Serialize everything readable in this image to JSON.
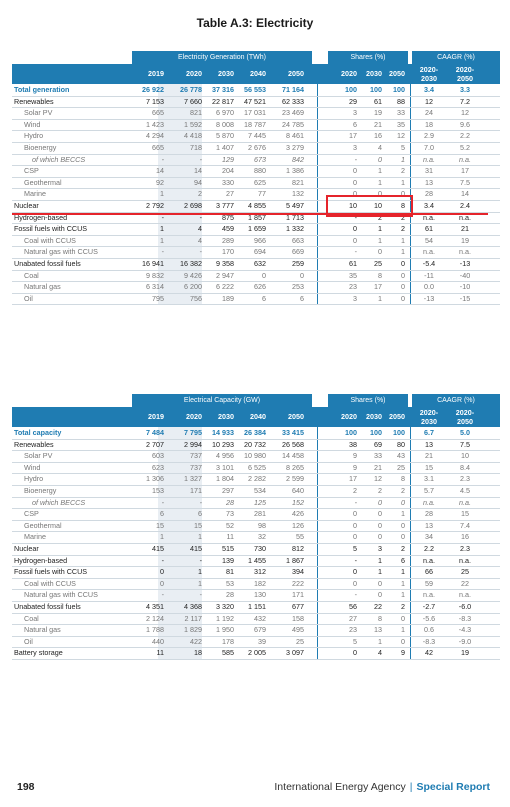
{
  "title": "Table A.3: Electricity",
  "tables": [
    {
      "band_main": "Electricity Generation (TWh)",
      "band_shares": "Shares (%)",
      "band_caagr": "CAAGR (%)",
      "years": [
        "2019",
        "2020",
        "2030",
        "2040",
        "2050"
      ],
      "share_years": [
        "2020",
        "2030",
        "2050"
      ],
      "caagr_years": [
        "2020-\n2030",
        "2020-\n2050"
      ],
      "rows": [
        {
          "label": "Total generation",
          "style": "total",
          "v": [
            "26 922",
            "26 778",
            "37 316",
            "56 553",
            "71 164"
          ],
          "s": [
            "100",
            "100",
            "100"
          ],
          "c": [
            "3.4",
            "3.3"
          ]
        },
        {
          "label": "Renewables",
          "style": "main",
          "v": [
            "7 153",
            "7 660",
            "22 817",
            "47 521",
            "62 333"
          ],
          "s": [
            "29",
            "61",
            "88"
          ],
          "c": [
            "12",
            "7.2"
          ]
        },
        {
          "label": "Solar PV",
          "style": "sub",
          "v": [
            "665",
            "821",
            "6 970",
            "17 031",
            "23 469"
          ],
          "s": [
            "3",
            "19",
            "33"
          ],
          "c": [
            "24",
            "12"
          ]
        },
        {
          "label": "Wind",
          "style": "sub",
          "v": [
            "1 423",
            "1 592",
            "8 008",
            "18 787",
            "24 785"
          ],
          "s": [
            "6",
            "21",
            "35"
          ],
          "c": [
            "18",
            "9.6"
          ]
        },
        {
          "label": "Hydro",
          "style": "sub",
          "v": [
            "4 294",
            "4 418",
            "5 870",
            "7 445",
            "8 461"
          ],
          "s": [
            "17",
            "16",
            "12"
          ],
          "c": [
            "2.9",
            "2.2"
          ]
        },
        {
          "label": "Bioenergy",
          "style": "sub",
          "v": [
            "665",
            "718",
            "1 407",
            "2 676",
            "3 279"
          ],
          "s": [
            "3",
            "4",
            "5"
          ],
          "c": [
            "7.0",
            "5.2"
          ]
        },
        {
          "label": "of which BECCS",
          "style": "subsub",
          "v": [
            "-",
            "-",
            "129",
            "673",
            "842"
          ],
          "s": [
            "-",
            "0",
            "1"
          ],
          "c": [
            "n.a.",
            "n.a."
          ]
        },
        {
          "label": "CSP",
          "style": "sub",
          "v": [
            "14",
            "14",
            "204",
            "880",
            "1 386"
          ],
          "s": [
            "0",
            "1",
            "2"
          ],
          "c": [
            "31",
            "17"
          ]
        },
        {
          "label": "Geothermal",
          "style": "sub",
          "v": [
            "92",
            "94",
            "330",
            "625",
            "821"
          ],
          "s": [
            "0",
            "1",
            "1"
          ],
          "c": [
            "13",
            "7.5"
          ]
        },
        {
          "label": "Marine",
          "style": "sub",
          "v": [
            "1",
            "2",
            "27",
            "77",
            "132"
          ],
          "s": [
            "0",
            "0",
            "0"
          ],
          "c": [
            "28",
            "14"
          ]
        },
        {
          "label": "Nuclear",
          "style": "main",
          "v": [
            "2 792",
            "2 698",
            "3 777",
            "4 855",
            "5 497"
          ],
          "s": [
            "10",
            "10",
            "8"
          ],
          "c": [
            "3.4",
            "2.4"
          ]
        },
        {
          "label": "Hydrogen-based",
          "style": "main",
          "v": [
            "-",
            "-",
            "875",
            "1 857",
            "1 713"
          ],
          "s": [
            "-",
            "2",
            "2"
          ],
          "c": [
            "n.a.",
            "n.a."
          ]
        },
        {
          "label": "Fossil fuels with CCUS",
          "style": "main",
          "v": [
            "1",
            "4",
            "459",
            "1 659",
            "1 332"
          ],
          "s": [
            "0",
            "1",
            "2"
          ],
          "c": [
            "61",
            "21"
          ]
        },
        {
          "label": "Coal with CCUS",
          "style": "sub",
          "v": [
            "1",
            "4",
            "289",
            "966",
            "663"
          ],
          "s": [
            "0",
            "1",
            "1"
          ],
          "c": [
            "54",
            "19"
          ]
        },
        {
          "label": "Natural gas with CCUS",
          "style": "sub",
          "v": [
            "-",
            "-",
            "170",
            "694",
            "669"
          ],
          "s": [
            "-",
            "0",
            "1"
          ],
          "c": [
            "n.a.",
            "n.a."
          ]
        },
        {
          "label": "Unabated fossil fuels",
          "style": "main",
          "v": [
            "16 941",
            "16 382",
            "9 358",
            "632",
            "259"
          ],
          "s": [
            "61",
            "25",
            "0"
          ],
          "c": [
            "-5.4",
            "-13"
          ]
        },
        {
          "label": "Coal",
          "style": "sub",
          "v": [
            "9 832",
            "9 426",
            "2 947",
            "0",
            "0"
          ],
          "s": [
            "35",
            "8",
            "0"
          ],
          "c": [
            "-11",
            "-40"
          ]
        },
        {
          "label": "Natural gas",
          "style": "sub",
          "v": [
            "6 314",
            "6 200",
            "6 222",
            "626",
            "253"
          ],
          "s": [
            "23",
            "17",
            "0"
          ],
          "c": [
            "0.0",
            "-10"
          ]
        },
        {
          "label": "Oil",
          "style": "sub",
          "v": [
            "795",
            "756",
            "189",
            "6",
            "6"
          ],
          "s": [
            "3",
            "1",
            "0"
          ],
          "c": [
            "-13",
            "-15"
          ]
        }
      ]
    },
    {
      "band_main": "Electrical Capacity (GW)",
      "band_shares": "Shares (%)",
      "band_caagr": "CAAGR (%)",
      "years": [
        "2019",
        "2020",
        "2030",
        "2040",
        "2050"
      ],
      "share_years": [
        "2020",
        "2030",
        "2050"
      ],
      "caagr_years": [
        "2020-\n2030",
        "2020-\n2050"
      ],
      "rows": [
        {
          "label": "Total capacity",
          "style": "total",
          "v": [
            "7 484",
            "7 795",
            "14 933",
            "26 384",
            "33 415"
          ],
          "s": [
            "100",
            "100",
            "100"
          ],
          "c": [
            "6.7",
            "5.0"
          ]
        },
        {
          "label": "Renewables",
          "style": "main",
          "v": [
            "2 707",
            "2 994",
            "10 293",
            "20 732",
            "26 568"
          ],
          "s": [
            "38",
            "69",
            "80"
          ],
          "c": [
            "13",
            "7.5"
          ]
        },
        {
          "label": "Solar PV",
          "style": "sub",
          "v": [
            "603",
            "737",
            "4 956",
            "10 980",
            "14 458"
          ],
          "s": [
            "9",
            "33",
            "43"
          ],
          "c": [
            "21",
            "10"
          ]
        },
        {
          "label": "Wind",
          "style": "sub",
          "v": [
            "623",
            "737",
            "3 101",
            "6 525",
            "8 265"
          ],
          "s": [
            "9",
            "21",
            "25"
          ],
          "c": [
            "15",
            "8.4"
          ]
        },
        {
          "label": "Hydro",
          "style": "sub",
          "v": [
            "1 306",
            "1 327",
            "1 804",
            "2 282",
            "2 599"
          ],
          "s": [
            "17",
            "12",
            "8"
          ],
          "c": [
            "3.1",
            "2.3"
          ]
        },
        {
          "label": "Bioenergy",
          "style": "sub",
          "v": [
            "153",
            "171",
            "297",
            "534",
            "640"
          ],
          "s": [
            "2",
            "2",
            "2"
          ],
          "c": [
            "5.7",
            "4.5"
          ]
        },
        {
          "label": "of which BECCS",
          "style": "subsub",
          "v": [
            "-",
            "-",
            "28",
            "125",
            "152"
          ],
          "s": [
            "-",
            "0",
            "0"
          ],
          "c": [
            "n.a.",
            "n.a."
          ]
        },
        {
          "label": "CSP",
          "style": "sub",
          "v": [
            "6",
            "6",
            "73",
            "281",
            "426"
          ],
          "s": [
            "0",
            "0",
            "1"
          ],
          "c": [
            "28",
            "15"
          ]
        },
        {
          "label": "Geothermal",
          "style": "sub",
          "v": [
            "15",
            "15",
            "52",
            "98",
            "126"
          ],
          "s": [
            "0",
            "0",
            "0"
          ],
          "c": [
            "13",
            "7.4"
          ]
        },
        {
          "label": "Marine",
          "style": "sub",
          "v": [
            "1",
            "1",
            "11",
            "32",
            "55"
          ],
          "s": [
            "0",
            "0",
            "0"
          ],
          "c": [
            "34",
            "16"
          ]
        },
        {
          "label": "Nuclear",
          "style": "main",
          "v": [
            "415",
            "415",
            "515",
            "730",
            "812"
          ],
          "s": [
            "5",
            "3",
            "2"
          ],
          "c": [
            "2.2",
            "2.3"
          ]
        },
        {
          "label": "Hydrogen-based",
          "style": "main",
          "v": [
            "-",
            "-",
            "139",
            "1 455",
            "1 867"
          ],
          "s": [
            "-",
            "1",
            "6"
          ],
          "c": [
            "n.a.",
            "n.a."
          ]
        },
        {
          "label": "Fossil fuels with CCUS",
          "style": "main",
          "v": [
            "0",
            "1",
            "81",
            "312",
            "394"
          ],
          "s": [
            "0",
            "1",
            "1"
          ],
          "c": [
            "66",
            "25"
          ]
        },
        {
          "label": "Coal with CCUS",
          "style": "sub",
          "v": [
            "0",
            "1",
            "53",
            "182",
            "222"
          ],
          "s": [
            "0",
            "0",
            "1"
          ],
          "c": [
            "59",
            "22"
          ]
        },
        {
          "label": "Natural gas with CCUS",
          "style": "sub",
          "v": [
            "-",
            "-",
            "28",
            "130",
            "171"
          ],
          "s": [
            "-",
            "0",
            "1"
          ],
          "c": [
            "n.a.",
            "n.a."
          ]
        },
        {
          "label": "Unabated fossil fuels",
          "style": "main",
          "v": [
            "4 351",
            "4 368",
            "3 320",
            "1 151",
            "677"
          ],
          "s": [
            "56",
            "22",
            "2"
          ],
          "c": [
            "-2.7",
            "-6.0"
          ]
        },
        {
          "label": "Coal",
          "style": "sub",
          "v": [
            "2 124",
            "2 117",
            "1 192",
            "432",
            "158"
          ],
          "s": [
            "27",
            "8",
            "0"
          ],
          "c": [
            "-5.6",
            "-8.3"
          ]
        },
        {
          "label": "Natural gas",
          "style": "sub",
          "v": [
            "1 788",
            "1 829",
            "1 950",
            "679",
            "495"
          ],
          "s": [
            "23",
            "13",
            "1"
          ],
          "c": [
            "0.6",
            "-4.3"
          ]
        },
        {
          "label": "Oil",
          "style": "sub",
          "v": [
            "440",
            "422",
            "178",
            "39",
            "25"
          ],
          "s": [
            "5",
            "1",
            "0"
          ],
          "c": [
            "-8.3",
            "-9.0"
          ]
        },
        {
          "label": "Battery storage",
          "style": "main",
          "v": [
            "11",
            "18",
            "585",
            "2 005",
            "3 097"
          ],
          "s": [
            "0",
            "4",
            "9"
          ],
          "c": [
            "42",
            "19"
          ]
        }
      ]
    }
  ],
  "footer": {
    "page_number": "198",
    "publisher": "International Energy Agency",
    "separator": "|",
    "series": "Special Report"
  }
}
